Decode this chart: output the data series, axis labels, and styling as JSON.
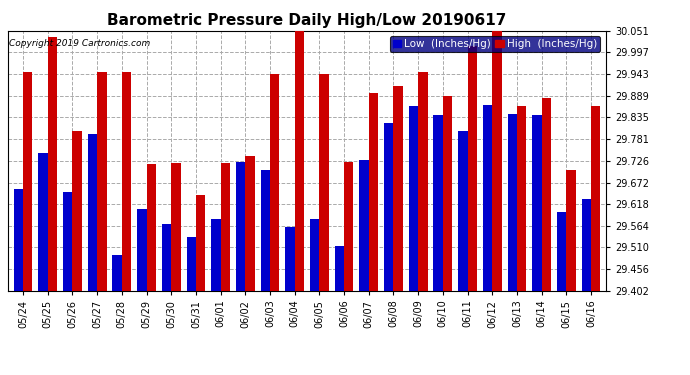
{
  "title": "Barometric Pressure Daily High/Low 20190617",
  "copyright": "Copyright 2019 Cartronics.com",
  "legend_low": "Low  (Inches/Hg)",
  "legend_high": "High  (Inches/Hg)",
  "dates": [
    "05/24",
    "05/25",
    "05/26",
    "05/27",
    "05/28",
    "05/29",
    "05/30",
    "05/31",
    "06/01",
    "06/02",
    "06/03",
    "06/04",
    "06/05",
    "06/06",
    "06/07",
    "06/08",
    "06/09",
    "06/10",
    "06/11",
    "06/12",
    "06/13",
    "06/14",
    "06/15",
    "06/16"
  ],
  "low": [
    29.655,
    29.745,
    29.648,
    29.792,
    29.492,
    29.605,
    29.568,
    29.535,
    29.582,
    29.723,
    29.702,
    29.562,
    29.582,
    29.513,
    29.728,
    29.82,
    29.862,
    29.84,
    29.8,
    29.865,
    29.843,
    29.84,
    29.598,
    29.632
  ],
  "high": [
    29.947,
    30.035,
    29.8,
    29.948,
    29.948,
    29.718,
    29.72,
    29.64,
    29.72,
    29.738,
    29.943,
    30.051,
    29.943,
    29.722,
    29.896,
    29.912,
    29.948,
    29.887,
    30.012,
    30.051,
    29.864,
    29.884,
    29.703,
    29.864
  ],
  "ylim_min": 29.402,
  "ylim_max": 30.051,
  "yticks": [
    29.402,
    29.456,
    29.51,
    29.564,
    29.618,
    29.672,
    29.726,
    29.781,
    29.835,
    29.889,
    29.943,
    29.997,
    30.051
  ],
  "bar_width": 0.38,
  "low_color": "#0000cc",
  "high_color": "#cc0000",
  "bg_color": "#ffffff",
  "grid_color": "#aaaaaa",
  "title_fontsize": 11,
  "copyright_fontsize": 6.5,
  "tick_fontsize": 7,
  "legend_fontsize": 7.5
}
